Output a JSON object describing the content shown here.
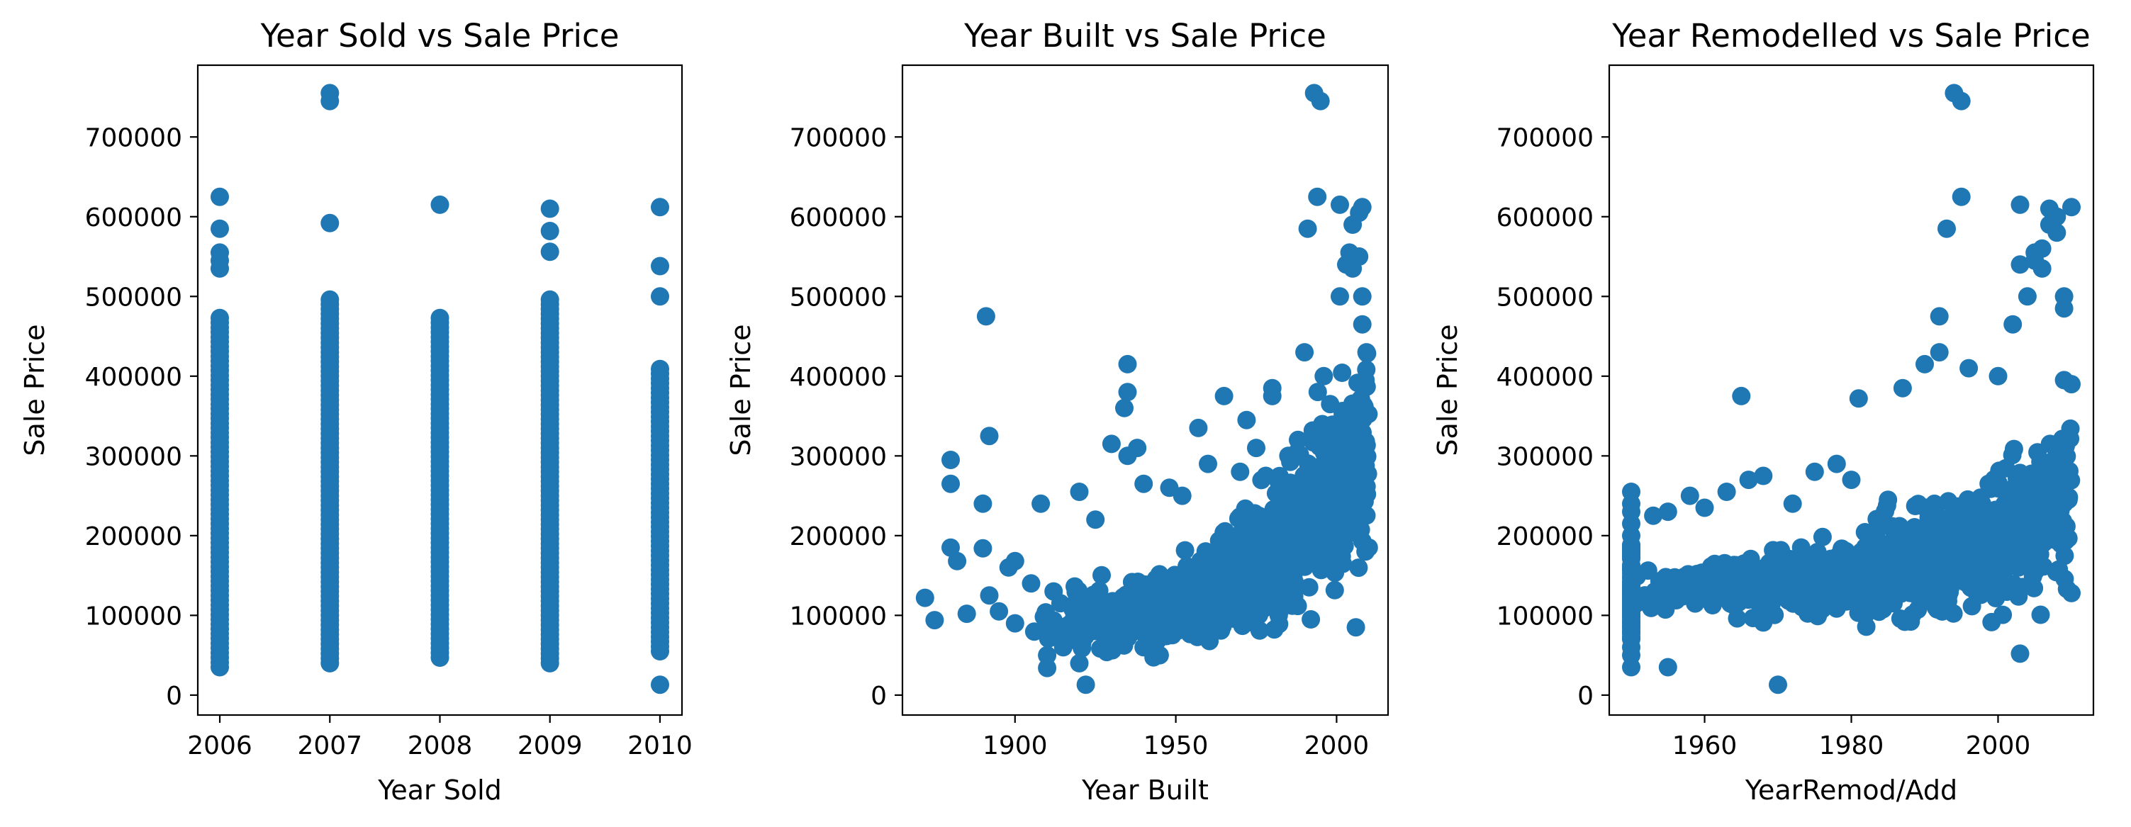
{
  "chart_data": [
    {
      "type": "scatter",
      "title": "Year Sold vs Sale Price",
      "xlabel": "Year Sold",
      "ylabel": "Sale Price",
      "xlim": [
        2005.8,
        2010.2
      ],
      "ylim": [
        -25000,
        790000
      ],
      "xticks": [
        2006,
        2007,
        2008,
        2009,
        2010
      ],
      "yticks": [
        0,
        100000,
        200000,
        300000,
        400000,
        500000,
        600000,
        700000
      ],
      "color": "#1f77b4",
      "grid": false,
      "columns": [
        {
          "x": 2006,
          "low": 35000,
          "high": 475000,
          "outliers": [
            625000,
            585000,
            555000,
            545000,
            535000
          ]
        },
        {
          "x": 2007,
          "low": 40000,
          "high": 500000,
          "outliers": [
            755000,
            745000,
            592000
          ]
        },
        {
          "x": 2008,
          "low": 47000,
          "high": 475000,
          "outliers": [
            615000
          ]
        },
        {
          "x": 2009,
          "low": 40000,
          "high": 500000,
          "outliers": [
            610000,
            582000,
            556000
          ]
        },
        {
          "x": 2010,
          "low": 55000,
          "high": 410000,
          "outliers": [
            612000,
            538000,
            500000,
            13000
          ]
        }
      ]
    },
    {
      "type": "scatter",
      "title": "Year Built vs Sale Price",
      "xlabel": "Year Built",
      "ylabel": "Sale Price",
      "xlim": [
        1865,
        2016
      ],
      "ylim": [
        -25000,
        790000
      ],
      "xticks": [
        1900,
        1950,
        2000
      ],
      "yticks": [
        0,
        100000,
        200000,
        300000,
        400000,
        500000,
        600000,
        700000
      ],
      "color": "#1f77b4",
      "grid": false,
      "points": [
        [
          1872,
          122000
        ],
        [
          1875,
          94000
        ],
        [
          1880,
          185000
        ],
        [
          1880,
          295000
        ],
        [
          1880,
          265000
        ],
        [
          1882,
          168000
        ],
        [
          1885,
          102000
        ],
        [
          1890,
          240000
        ],
        [
          1890,
          184000
        ],
        [
          1891,
          475000
        ],
        [
          1892,
          325000
        ],
        [
          1892,
          125000
        ],
        [
          1895,
          105000
        ],
        [
          1898,
          160000
        ],
        [
          1900,
          168000
        ],
        [
          1900,
          90000
        ],
        [
          1905,
          140000
        ],
        [
          1908,
          240000
        ],
        [
          1910,
          50000
        ],
        [
          1910,
          34000
        ],
        [
          1912,
          130000
        ],
        [
          1915,
          60000
        ],
        [
          1920,
          255000
        ],
        [
          1920,
          40000
        ],
        [
          1922,
          13000
        ],
        [
          1925,
          220000
        ],
        [
          1930,
          315000
        ],
        [
          1934,
          360000
        ],
        [
          1935,
          415000
        ],
        [
          1935,
          380000
        ],
        [
          1935,
          300000
        ],
        [
          1938,
          310000
        ],
        [
          1940,
          60000
        ],
        [
          1940,
          265000
        ],
        [
          1945,
          50000
        ],
        [
          1948,
          260000
        ],
        [
          1952,
          250000
        ],
        [
          1957,
          335000
        ],
        [
          1960,
          290000
        ],
        [
          1965,
          375000
        ],
        [
          1970,
          280000
        ],
        [
          1972,
          345000
        ],
        [
          1975,
          310000
        ],
        [
          1978,
          275000
        ],
        [
          1980,
          385000
        ],
        [
          1980,
          375000
        ],
        [
          1982,
          100000
        ],
        [
          1985,
          300000
        ],
        [
          1988,
          320000
        ],
        [
          1990,
          430000
        ],
        [
          1991,
          585000
        ],
        [
          1992,
          95000
        ],
        [
          1993,
          755000
        ],
        [
          1995,
          745000
        ],
        [
          1994,
          625000
        ],
        [
          1996,
          400000
        ],
        [
          1998,
          365000
        ],
        [
          2001,
          500000
        ],
        [
          2001,
          615000
        ],
        [
          2003,
          540000
        ],
        [
          2004,
          555000
        ],
        [
          2005,
          590000
        ],
        [
          2005,
          535000
        ],
        [
          2006,
          85000
        ],
        [
          2007,
          605000
        ],
        [
          2007,
          550000
        ],
        [
          2008,
          612000
        ],
        [
          2008,
          500000
        ],
        [
          2008,
          465000
        ],
        [
          2009,
          395000
        ],
        [
          2009,
          180000
        ],
        [
          2010,
          185000
        ]
      ]
    },
    {
      "type": "scatter",
      "title": "Year Remodelled vs Sale Price",
      "xlabel": "YearRemod/Add",
      "ylabel": "Sale Price",
      "xlim": [
        1947,
        2013
      ],
      "ylim": [
        -25000,
        790000
      ],
      "xticks": [
        1960,
        1980,
        2000
      ],
      "yticks": [
        0,
        100000,
        200000,
        300000,
        400000,
        500000,
        600000,
        700000
      ],
      "color": "#1f77b4",
      "grid": false,
      "points": [
        [
          1950,
          255000
        ],
        [
          1950,
          240000
        ],
        [
          1950,
          230000
        ],
        [
          1950,
          215000
        ],
        [
          1950,
          200000
        ],
        [
          1950,
          180000
        ],
        [
          1950,
          60000
        ],
        [
          1950,
          50000
        ],
        [
          1950,
          35000
        ],
        [
          1953,
          225000
        ],
        [
          1955,
          230000
        ],
        [
          1955,
          35000
        ],
        [
          1958,
          250000
        ],
        [
          1960,
          235000
        ],
        [
          1963,
          255000
        ],
        [
          1965,
          375000
        ],
        [
          1966,
          270000
        ],
        [
          1968,
          275000
        ],
        [
          1970,
          13000
        ],
        [
          1972,
          240000
        ],
        [
          1975,
          280000
        ],
        [
          1978,
          290000
        ],
        [
          1980,
          270000
        ],
        [
          1981,
          372000
        ],
        [
          1985,
          245000
        ],
        [
          1987,
          385000
        ],
        [
          1990,
          415000
        ],
        [
          1992,
          430000
        ],
        [
          1992,
          475000
        ],
        [
          1993,
          585000
        ],
        [
          1994,
          755000
        ],
        [
          1995,
          745000
        ],
        [
          1995,
          625000
        ],
        [
          1996,
          410000
        ],
        [
          2000,
          400000
        ],
        [
          2002,
          465000
        ],
        [
          2003,
          615000
        ],
        [
          2003,
          540000
        ],
        [
          2003,
          52000
        ],
        [
          2004,
          500000
        ],
        [
          2005,
          555000
        ],
        [
          2005,
          545000
        ],
        [
          2006,
          560000
        ],
        [
          2006,
          535000
        ],
        [
          2007,
          610000
        ],
        [
          2007,
          590000
        ],
        [
          2008,
          600000
        ],
        [
          2008,
          580000
        ],
        [
          2009,
          500000
        ],
        [
          2009,
          485000
        ],
        [
          2009,
          395000
        ],
        [
          2010,
          612000
        ],
        [
          2010,
          390000
        ],
        [
          2010,
          128000
        ]
      ]
    }
  ]
}
